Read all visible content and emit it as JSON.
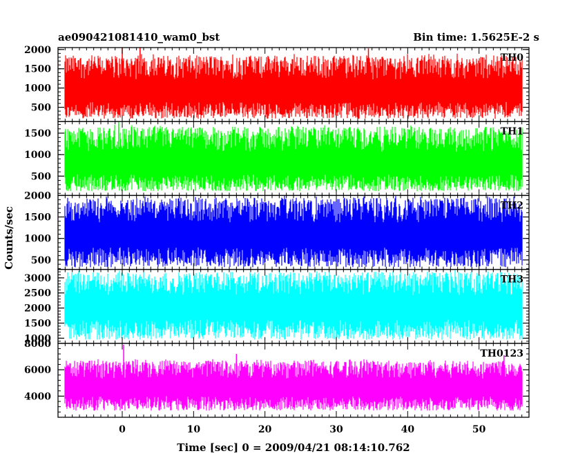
{
  "header": {
    "left_title": "ae090421081410_wam0_bst",
    "right_title": "Bin time: 1.5625E-2 s"
  },
  "chart_data": {
    "type": "line",
    "xlabel": "Time [sec] 0 = 2009/04/21 08:14:10.762",
    "ylabel": "Counts/sec",
    "xlim": [
      -9,
      57
    ],
    "x_range_data": [
      -8,
      56
    ],
    "x_ticks": [
      0,
      10,
      20,
      30,
      40,
      50
    ],
    "x_tick_labels": [
      "0",
      "10",
      "20",
      "30",
      "40",
      "50"
    ],
    "grid": false,
    "legend": "none",
    "bin_time_s": 0.015625,
    "series": [
      {
        "name": "TH0",
        "color": "#ff0000",
        "ylim": [
          130,
          2050
        ],
        "y_ticks": [
          500,
          1000,
          1500,
          2000
        ],
        "y_tick_labels": [
          "500",
          "1000",
          "1500",
          "2000"
        ],
        "typical_min": 200,
        "typical_max": 1850,
        "mean": 880,
        "spikes": [
          {
            "x": 0,
            "y": 2040
          },
          {
            "x": 2.5,
            "y": 2050
          },
          {
            "x": 34.5,
            "y": 2030
          }
        ]
      },
      {
        "name": "TH1",
        "color": "#00ff00",
        "ylim": [
          50,
          1770
        ],
        "y_ticks": [
          500,
          1000,
          1500
        ],
        "y_tick_labels": [
          "500",
          "1000",
          "1500"
        ],
        "typical_min": 150,
        "typical_max": 1650,
        "mean": 750,
        "spikes": [
          {
            "x": -0.5,
            "y": 1760
          }
        ]
      },
      {
        "name": "TH2",
        "color": "#0000ff",
        "ylim": [
          280,
          2000
        ],
        "y_ticks": [
          500,
          1000,
          1500,
          2000
        ],
        "y_tick_labels": [
          "500",
          "1000",
          "1500",
          "2000"
        ],
        "typical_min": 330,
        "typical_max": 1950,
        "mean": 1050,
        "spikes": []
      },
      {
        "name": "TH3",
        "color": "#00ffff",
        "ylim": [
          830,
          3280
        ],
        "y_ticks": [
          1000,
          1500,
          2000,
          2500,
          3000
        ],
        "y_tick_labels": [
          "1000",
          "1500",
          "2000",
          "2500",
          "3000"
        ],
        "typical_min": 950,
        "typical_max": 3200,
        "mean": 2000,
        "spikes": []
      },
      {
        "name": "TH0123",
        "color": "#ff00ff",
        "ylim": [
          2400,
          8000
        ],
        "y_ticks": [
          4000,
          6000,
          8000
        ],
        "y_tick_labels": [
          "4000",
          "6000",
          "8000"
        ],
        "typical_min": 2900,
        "typical_max": 6700,
        "mean": 4600,
        "spikes": [
          {
            "x": 0.2,
            "y": 7900
          },
          {
            "x": 16,
            "y": 7200
          },
          {
            "x": 53.5,
            "y": 7100
          }
        ]
      }
    ]
  }
}
